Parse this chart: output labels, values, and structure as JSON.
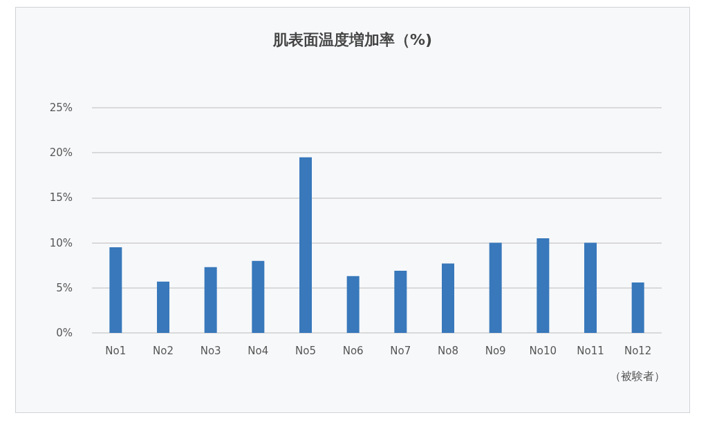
{
  "chart_data": {
    "type": "bar",
    "title": "肌表面温度増加率（%)",
    "xlabel": "（被験者）",
    "categories": [
      "No1",
      "No2",
      "No3",
      "No4",
      "No5",
      "No6",
      "No7",
      "No8",
      "No9",
      "No10",
      "No11",
      "No12"
    ],
    "values": [
      9.5,
      5.7,
      7.3,
      8.0,
      19.5,
      6.3,
      6.9,
      7.7,
      10.0,
      10.5,
      10.0,
      5.6
    ],
    "color": "#3878bb",
    "ylim": [
      0,
      25
    ],
    "yticks": [
      {
        "value": 0,
        "label": "0%"
      },
      {
        "value": 5,
        "label": "5%"
      },
      {
        "value": 10,
        "label": "10%"
      },
      {
        "value": 15,
        "label": "15%"
      },
      {
        "value": 20,
        "label": "20%"
      },
      {
        "value": 25,
        "label": "25%"
      }
    ],
    "grid": "y"
  }
}
